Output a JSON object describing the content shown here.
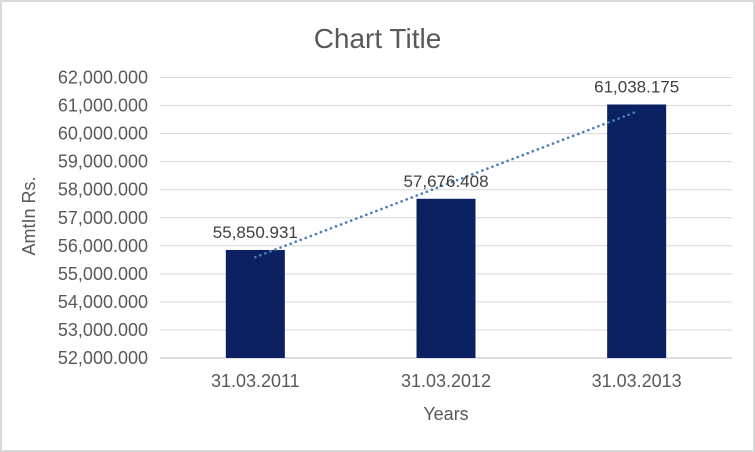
{
  "window": {
    "background": "#ffffff",
    "border_color": "#d9d9d9"
  },
  "chart_data": {
    "type": "bar",
    "title": "Chart Title",
    "xlabel": "Years",
    "ylabel": "AmtIn Rs.",
    "categories": [
      "31.03.2011",
      "31.03.2012",
      "31.03.2013"
    ],
    "values": [
      55850.931,
      57676.408,
      61038.175
    ],
    "data_labels": [
      "55,850.931",
      "57,676.408",
      "61,038.175"
    ],
    "ylim": [
      52000,
      62000
    ],
    "ytick_step": 1000,
    "ytick_labels": [
      "52,000.000",
      "53,000.000",
      "54,000.000",
      "55,000.000",
      "56,000.000",
      "57,000.000",
      "58,000.000",
      "59,000.000",
      "60,000.000",
      "61,000.000",
      "62,000.000"
    ],
    "grid": true,
    "legend": "none",
    "bar_color": "#0b2161",
    "trendline": {
      "type": "linear",
      "style": "dotted",
      "color": "#4a7ebb"
    },
    "colors": {
      "title": "#595959",
      "axis_labels": "#595959",
      "data_labels": "#404040",
      "gridline": "#d9d9d9",
      "axis_line": "#bfbfbf"
    }
  }
}
